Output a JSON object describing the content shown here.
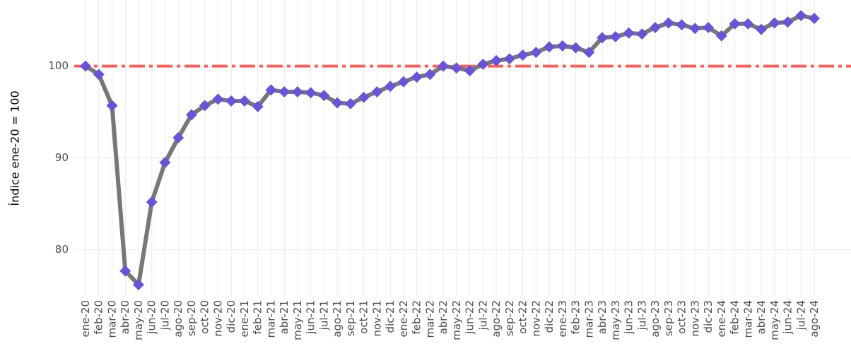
{
  "chart_data": {
    "type": "line",
    "y_label": "Índice ene-20 = 100",
    "categories": [
      "ene-20",
      "feb-20",
      "mar-20",
      "abr-20",
      "may-20",
      "jun-20",
      "jul-20",
      "ago-20",
      "sep-20",
      "oct-20",
      "nov-20",
      "dic-20",
      "ene-21",
      "feb-21",
      "mar-21",
      "abr-21",
      "may-21",
      "jun-21",
      "jul-21",
      "ago-21",
      "sep-21",
      "oct-21",
      "nov-21",
      "dic-21",
      "ene-22",
      "feb-22",
      "mar-22",
      "abr-22",
      "may-22",
      "jun-22",
      "jul-22",
      "ago-22",
      "sep-22",
      "oct-22",
      "nov-22",
      "dic-22",
      "ene-23",
      "feb-23",
      "mar-23",
      "abr-23",
      "may-23",
      "jun-23",
      "jul-23",
      "ago-23",
      "sep-23",
      "oct-23",
      "nov-23",
      "dic-23",
      "ene-24",
      "feb-24",
      "mar-24",
      "abr-24",
      "may-24",
      "jun-24",
      "jul-24",
      "ago-24"
    ],
    "values": [
      100,
      99.1,
      95.7,
      77.7,
      76.2,
      85.2,
      89.5,
      92.2,
      94.7,
      95.7,
      96.4,
      96.2,
      96.2,
      95.6,
      97.4,
      97.2,
      97.2,
      97.1,
      96.8,
      96.0,
      95.9,
      96.6,
      97.2,
      97.8,
      98.3,
      98.8,
      99.1,
      100.0,
      99.8,
      99.5,
      100.2,
      100.6,
      100.8,
      101.2,
      101.5,
      102.1,
      102.2,
      102.0,
      101.5,
      103.1,
      103.2,
      103.6,
      103.5,
      104.2,
      104.7,
      104.5,
      104.1,
      104.2,
      103.3,
      104.6,
      104.6,
      104.0,
      104.7,
      104.8,
      105.5,
      105.2
    ],
    "color": "#777777",
    "marker_color": "#6a52d9",
    "reference_line": 100,
    "reference_color": "#f4645f",
    "ylim": [
      74.9,
      107.2
    ],
    "yticks": [
      80,
      90,
      100
    ],
    "grid": true
  }
}
